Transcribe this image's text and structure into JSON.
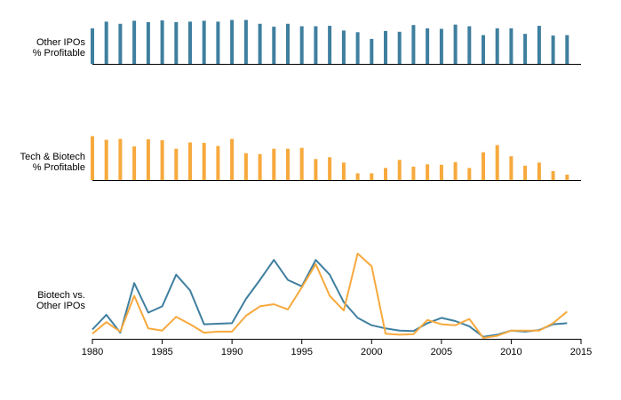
{
  "chart_data": [
    {
      "type": "bar",
      "ylabel_lines": [
        "Other IPOs",
        "% Profitable"
      ],
      "color": "#3f7f9f",
      "x": [
        1980,
        1981,
        1982,
        1983,
        1984,
        1985,
        1986,
        1987,
        1988,
        1989,
        1990,
        1991,
        1992,
        1993,
        1994,
        1995,
        1996,
        1997,
        1998,
        1999,
        2000,
        2001,
        2002,
        2003,
        2004,
        2005,
        2006,
        2007,
        2008,
        2009,
        2010,
        2011,
        2012,
        2013,
        2014
      ],
      "values": [
        0.84,
        1.0,
        0.95,
        1.02,
        0.99,
        1.03,
        0.99,
        1.0,
        1.02,
        1.0,
        1.04,
        1.04,
        0.95,
        0.88,
        0.95,
        0.89,
        0.89,
        0.9,
        0.79,
        0.75,
        0.59,
        0.78,
        0.76,
        0.92,
        0.84,
        0.83,
        0.93,
        0.89,
        0.68,
        0.84,
        0.84,
        0.71,
        0.9,
        0.67,
        0.68
      ],
      "ylim": [
        0,
        1.05
      ]
    },
    {
      "type": "bar",
      "ylabel_lines": [
        "Tech & Biotech",
        "% Profitable"
      ],
      "color": "#f7a93d",
      "x": [
        1980,
        1981,
        1982,
        1983,
        1984,
        1985,
        1986,
        1987,
        1988,
        1989,
        1990,
        1991,
        1992,
        1993,
        1994,
        1995,
        1996,
        1997,
        1998,
        1999,
        2000,
        2001,
        2002,
        2003,
        2004,
        2005,
        2006,
        2007,
        2008,
        2009,
        2010,
        2011,
        2012,
        2013,
        2014
      ],
      "values": [
        0.98,
        0.9,
        0.92,
        0.75,
        0.91,
        0.89,
        0.7,
        0.84,
        0.83,
        0.76,
        0.92,
        0.6,
        0.58,
        0.7,
        0.7,
        0.72,
        0.47,
        0.51,
        0.39,
        0.15,
        0.15,
        0.27,
        0.45,
        0.3,
        0.35,
        0.34,
        0.4,
        0.27,
        0.62,
        0.78,
        0.53,
        0.32,
        0.39,
        0.2,
        0.12
      ],
      "ylim": [
        0,
        1.05
      ]
    },
    {
      "type": "line",
      "ylabel_lines": [
        "Biotech vs.",
        "Other IPOs"
      ],
      "x": [
        1980,
        1981,
        1982,
        1983,
        1984,
        1985,
        1986,
        1987,
        1988,
        1989,
        1990,
        1991,
        1992,
        1993,
        1994,
        1995,
        1996,
        1997,
        1998,
        1999,
        2000,
        2001,
        2002,
        2003,
        2004,
        2005,
        2006,
        2007,
        2008,
        2009,
        2010,
        2011,
        2012,
        2013,
        2014
      ],
      "series": [
        {
          "color": "#3f7f9f",
          "values": [
            0.08,
            0.22,
            0.05,
            0.52,
            0.24,
            0.3,
            0.6,
            0.45,
            0.13,
            0.135,
            0.14,
            0.37,
            0.55,
            0.74,
            0.55,
            0.49,
            0.74,
            0.6,
            0.34,
            0.19,
            0.12,
            0.09,
            0.07,
            0.065,
            0.14,
            0.19,
            0.16,
            0.11,
            0.01,
            0.03,
            0.07,
            0.06,
            0.075,
            0.13,
            0.14
          ]
        },
        {
          "color": "#f7a93d",
          "values": [
            0.04,
            0.15,
            0.06,
            0.4,
            0.09,
            0.07,
            0.2,
            0.13,
            0.05,
            0.06,
            0.06,
            0.21,
            0.3,
            0.32,
            0.27,
            0.48,
            0.7,
            0.4,
            0.26,
            0.8,
            0.68,
            0.04,
            0.03,
            0.035,
            0.17,
            0.13,
            0.12,
            0.18,
            0.0,
            0.02,
            0.07,
            0.07,
            0.07,
            0.14,
            0.25
          ]
        }
      ],
      "ylim": [
        0,
        0.85
      ]
    }
  ],
  "x_axis": {
    "ticks": [
      1980,
      1985,
      1990,
      1995,
      2000,
      2005,
      2010,
      2015
    ],
    "range": [
      1980,
      2015
    ]
  }
}
